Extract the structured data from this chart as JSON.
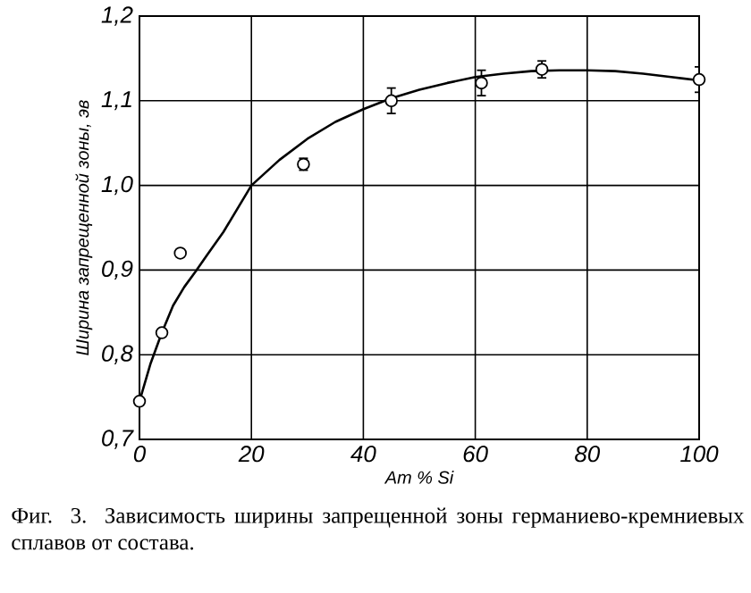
{
  "chart_data": {
    "type": "scatter",
    "xlabel": "Ат % Si",
    "ylabel": "Ширина запрещенной зоны, эв",
    "annotations": [
      "Фиг. 3. Зависимость ширины запрещенной зоны германиево-кремниевых сплавов от состава."
    ],
    "xlim": [
      0,
      100
    ],
    "xticks": [
      0,
      20,
      40,
      60,
      80,
      100
    ],
    "ylim": [
      0.7,
      1.2
    ],
    "yticks": [
      {
        "value": 0.7,
        "label": "0,7"
      },
      {
        "value": 0.8,
        "label": "0,8"
      },
      {
        "value": 0.9,
        "label": "0,9"
      },
      {
        "value": 1.0,
        "label": "1,0"
      },
      {
        "value": 1.1,
        "label": "1,1"
      },
      {
        "value": 1.2,
        "label": "1,2"
      }
    ],
    "grid": true,
    "series": [
      {
        "type": "line",
        "color": "#000000",
        "marker": "none",
        "x": [
          0,
          2,
          4,
          6,
          8,
          10,
          12,
          15,
          20,
          25,
          30,
          35,
          40,
          45,
          50,
          55,
          60,
          65,
          70,
          75,
          80,
          85,
          90,
          95,
          100
        ],
        "values": [
          0.745,
          0.79,
          0.826,
          0.858,
          0.88,
          0.898,
          0.917,
          0.945,
          1.0,
          1.03,
          1.055,
          1.075,
          1.09,
          1.103,
          1.113,
          1.121,
          1.128,
          1.132,
          1.135,
          1.136,
          1.136,
          1.135,
          1.132,
          1.128,
          1.124
        ]
      },
      {
        "color": "#000000",
        "marker": "circle",
        "x": [
          0,
          4,
          7.3,
          29.3,
          45,
          61.1,
          71.9,
          100
        ],
        "values": [
          0.745,
          0.826,
          0.92,
          1.025,
          1.1,
          1.121,
          1.137,
          1.125
        ],
        "errors": [
          null,
          null,
          null,
          0.007,
          0.015,
          0.015,
          0.01,
          0.015
        ]
      }
    ]
  }
}
